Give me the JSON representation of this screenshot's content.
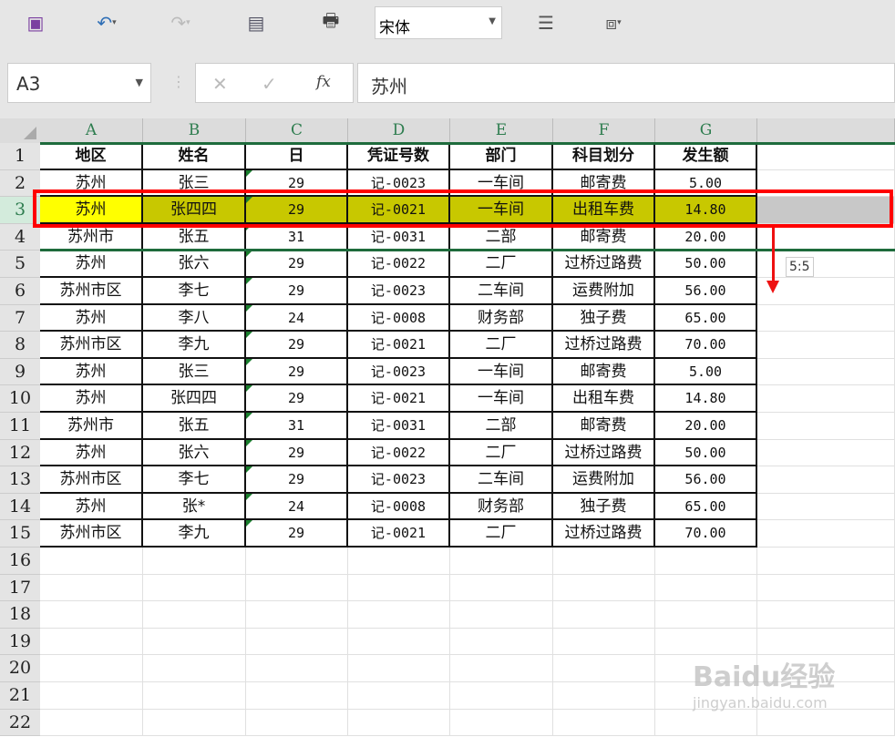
{
  "toolbar": {
    "font_name": "宋体",
    "icons": [
      "save-icon",
      "undo-icon",
      "redo-icon",
      "form-icon",
      "print-preview-icon",
      "font-dropdown",
      "wrap-text-icon",
      "toolbox-icon"
    ]
  },
  "formula_bar": {
    "name_box": "A3",
    "cancel": "✕",
    "confirm": "✓",
    "fx": "fx",
    "value": "苏州"
  },
  "columns": [
    "A",
    "B",
    "C",
    "D",
    "E",
    "F",
    "G"
  ],
  "row_count": 22,
  "headers": [
    "地区",
    "姓名",
    "日",
    "凭证号数",
    "部门",
    "科目划分",
    "发生额"
  ],
  "rows": [
    [
      "苏州",
      "张三",
      "29",
      "记-0023",
      "一车间",
      "邮寄费",
      "5.00"
    ],
    [
      "苏州",
      "张四四",
      "29",
      "记-0021",
      "一车间",
      "出租车费",
      "14.80"
    ],
    [
      "苏州市",
      "张五",
      "31",
      "记-0031",
      "二部",
      "邮寄费",
      "20.00"
    ],
    [
      "苏州",
      "张六",
      "29",
      "记-0022",
      "二厂",
      "过桥过路费",
      "50.00"
    ],
    [
      "苏州市区",
      "李七",
      "29",
      "记-0023",
      "二车间",
      "运费附加",
      "56.00"
    ],
    [
      "苏州",
      "李八",
      "24",
      "记-0008",
      "财务部",
      "独子费",
      "65.00"
    ],
    [
      "苏州市区",
      "李九",
      "29",
      "记-0021",
      "二厂",
      "过桥过路费",
      "70.00"
    ],
    [
      "苏州",
      "张三",
      "29",
      "记-0023",
      "一车间",
      "邮寄费",
      "5.00"
    ],
    [
      "苏州",
      "张四四",
      "29",
      "记-0021",
      "一车间",
      "出租车费",
      "14.80"
    ],
    [
      "苏州市",
      "张五",
      "31",
      "记-0031",
      "二部",
      "邮寄费",
      "20.00"
    ],
    [
      "苏州",
      "张六",
      "29",
      "记-0022",
      "二厂",
      "过桥过路费",
      "50.00"
    ],
    [
      "苏州市区",
      "李七",
      "29",
      "记-0023",
      "二车间",
      "运费附加",
      "56.00"
    ],
    [
      "苏州",
      "张*",
      "24",
      "记-0008",
      "财务部",
      "独子费",
      "65.00"
    ],
    [
      "苏州市区",
      "李九",
      "29",
      "记-0021",
      "二厂",
      "过桥过路费",
      "70.00"
    ]
  ],
  "selected_cell": "A3",
  "drag_tooltip": "5:5",
  "colors": {
    "selected_cell": "#ffff00",
    "row_highlight": "#c8c800",
    "highlight_box": "#ff0000",
    "move_line": "#1e6b3c"
  },
  "watermark": {
    "brand": "Baidu经验",
    "url": "jingyan.baidu.com"
  }
}
